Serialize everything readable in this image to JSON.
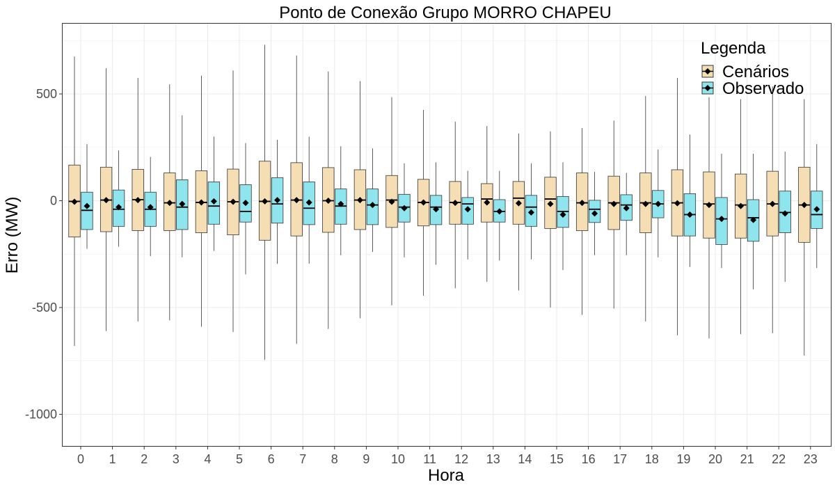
{
  "chart_data": {
    "type": "boxplot",
    "title": "Ponto de Conexão Grupo MORRO CHAPEU",
    "xlabel": "Hora",
    "ylabel": "Erro (MW)",
    "ylim": [
      -1140,
      830
    ],
    "yticks": [
      500,
      0,
      -500,
      -1000
    ],
    "grid": true,
    "legend": {
      "title": "Legenda",
      "position": "top-right",
      "entries": [
        {
          "label": "Cenários",
          "color": "#F5DEB3"
        },
        {
          "label": "Observado",
          "color": "#8EE5EE"
        }
      ]
    },
    "categories": [
      "0",
      "1",
      "2",
      "3",
      "4",
      "5",
      "6",
      "7",
      "8",
      "9",
      "10",
      "11",
      "12",
      "13",
      "14",
      "15",
      "16",
      "17",
      "18",
      "19",
      "20",
      "21",
      "22",
      "23"
    ],
    "series": [
      {
        "name": "Cenários",
        "color": "#F5DEB3",
        "boxes": [
          {
            "min": -680,
            "q1": -170,
            "median": -3,
            "q3": 167,
            "max": 675,
            "mean": -5
          },
          {
            "min": -610,
            "q1": -145,
            "median": 3,
            "q3": 157,
            "max": 620,
            "mean": 3
          },
          {
            "min": -565,
            "q1": -140,
            "median": 5,
            "q3": 147,
            "max": 575,
            "mean": 3
          },
          {
            "min": -560,
            "q1": -140,
            "median": -10,
            "q3": 130,
            "max": 545,
            "mean": -10
          },
          {
            "min": -590,
            "q1": -150,
            "median": -8,
            "q3": 140,
            "max": 585,
            "mean": -8
          },
          {
            "min": -615,
            "q1": -160,
            "median": -5,
            "q3": 148,
            "max": 610,
            "mean": -5
          },
          {
            "min": -745,
            "q1": -185,
            "median": -3,
            "q3": 185,
            "max": 730,
            "mean": -3
          },
          {
            "min": -670,
            "q1": -165,
            "median": 3,
            "q3": 178,
            "max": 680,
            "mean": 3
          },
          {
            "min": -600,
            "q1": -148,
            "median": 0,
            "q3": 155,
            "max": 605,
            "mean": 0
          },
          {
            "min": -550,
            "q1": -135,
            "median": 3,
            "q3": 145,
            "max": 560,
            "mean": 3
          },
          {
            "min": -490,
            "q1": -125,
            "median": 3,
            "q3": 118,
            "max": 485,
            "mean": -5
          },
          {
            "min": -445,
            "q1": -118,
            "median": -8,
            "q3": 100,
            "max": 425,
            "mean": -8
          },
          {
            "min": -410,
            "q1": -110,
            "median": -8,
            "q3": 90,
            "max": 370,
            "mean": -10
          },
          {
            "min": -380,
            "q1": -100,
            "median": 8,
            "q3": 80,
            "max": 350,
            "mean": -8
          },
          {
            "min": -420,
            "q1": -110,
            "median": 12,
            "q3": 90,
            "max": 315,
            "mean": -12
          },
          {
            "min": -500,
            "q1": -130,
            "median": 8,
            "q3": 110,
            "max": 325,
            "mean": -15
          },
          {
            "min": -535,
            "q1": -140,
            "median": -10,
            "q3": 130,
            "max": 340,
            "mean": -10
          },
          {
            "min": -505,
            "q1": -135,
            "median": -10,
            "q3": 115,
            "max": 375,
            "mean": -15
          },
          {
            "min": -565,
            "q1": -150,
            "median": -10,
            "q3": 130,
            "max": 490,
            "mean": -15
          },
          {
            "min": -630,
            "q1": -165,
            "median": -10,
            "q3": 145,
            "max": 575,
            "mean": -12
          },
          {
            "min": -645,
            "q1": -175,
            "median": -15,
            "q3": 135,
            "max": 485,
            "mean": -20
          },
          {
            "min": -625,
            "q1": -175,
            "median": -20,
            "q3": 125,
            "max": 475,
            "mean": -25
          },
          {
            "min": -620,
            "q1": -165,
            "median": -15,
            "q3": 138,
            "max": 535,
            "mean": -15
          },
          {
            "min": -725,
            "q1": -195,
            "median": -20,
            "q3": 157,
            "max": 475,
            "mean": -20
          }
        ]
      },
      {
        "name": "Observado",
        "color": "#8EE5EE",
        "boxes": [
          {
            "min": -225,
            "q1": -135,
            "median": -45,
            "q3": 40,
            "max": 265,
            "mean": -25
          },
          {
            "min": -215,
            "q1": -120,
            "median": -40,
            "q3": 50,
            "max": 235,
            "mean": -30
          },
          {
            "min": -260,
            "q1": -120,
            "median": -40,
            "q3": 40,
            "max": 205,
            "mean": -30
          },
          {
            "min": -265,
            "q1": -135,
            "median": -30,
            "q3": 98,
            "max": 400,
            "mean": -15
          },
          {
            "min": -235,
            "q1": -110,
            "median": -25,
            "q3": 88,
            "max": 300,
            "mean": -3
          },
          {
            "min": -345,
            "q1": -100,
            "median": -50,
            "q3": 75,
            "max": 270,
            "mean": -10
          },
          {
            "min": -295,
            "q1": -105,
            "median": -15,
            "q3": 108,
            "max": 285,
            "mean": 3
          },
          {
            "min": -295,
            "q1": -112,
            "median": -35,
            "q3": 88,
            "max": 300,
            "mean": -8
          },
          {
            "min": -255,
            "q1": -110,
            "median": -25,
            "q3": 55,
            "max": 255,
            "mean": -15
          },
          {
            "min": -240,
            "q1": -112,
            "median": -20,
            "q3": 55,
            "max": 245,
            "mean": -20
          },
          {
            "min": -265,
            "q1": -100,
            "median": -30,
            "q3": 30,
            "max": 175,
            "mean": -35
          },
          {
            "min": -300,
            "q1": -112,
            "median": -30,
            "q3": 25,
            "max": 180,
            "mean": -40
          },
          {
            "min": -275,
            "q1": -110,
            "median": -15,
            "q3": 15,
            "max": 140,
            "mean": -40
          },
          {
            "min": -280,
            "q1": -100,
            "median": -50,
            "q3": 5,
            "max": 140,
            "mean": -50
          },
          {
            "min": -275,
            "q1": -120,
            "median": -30,
            "q3": 25,
            "max": 175,
            "mean": -55
          },
          {
            "min": -325,
            "q1": -125,
            "median": -50,
            "q3": 20,
            "max": 180,
            "mean": -65
          },
          {
            "min": -255,
            "q1": -102,
            "median": -40,
            "q3": 2,
            "max": 135,
            "mean": -60
          },
          {
            "min": -255,
            "q1": -92,
            "median": -20,
            "q3": 28,
            "max": 130,
            "mean": -35
          },
          {
            "min": -265,
            "q1": -80,
            "median": -15,
            "q3": 48,
            "max": 240,
            "mean": -15
          },
          {
            "min": -310,
            "q1": -165,
            "median": -65,
            "q3": 33,
            "max": 310,
            "mean": -65
          },
          {
            "min": -315,
            "q1": -205,
            "median": -85,
            "q3": 15,
            "max": 220,
            "mean": -85
          },
          {
            "min": -415,
            "q1": -190,
            "median": -80,
            "q3": 5,
            "max": 220,
            "mean": -90
          },
          {
            "min": -380,
            "q1": -150,
            "median": -55,
            "q3": 45,
            "max": 230,
            "mean": -60
          },
          {
            "min": -315,
            "q1": -130,
            "median": -65,
            "q3": 45,
            "max": 265,
            "mean": -40
          }
        ]
      }
    ]
  }
}
